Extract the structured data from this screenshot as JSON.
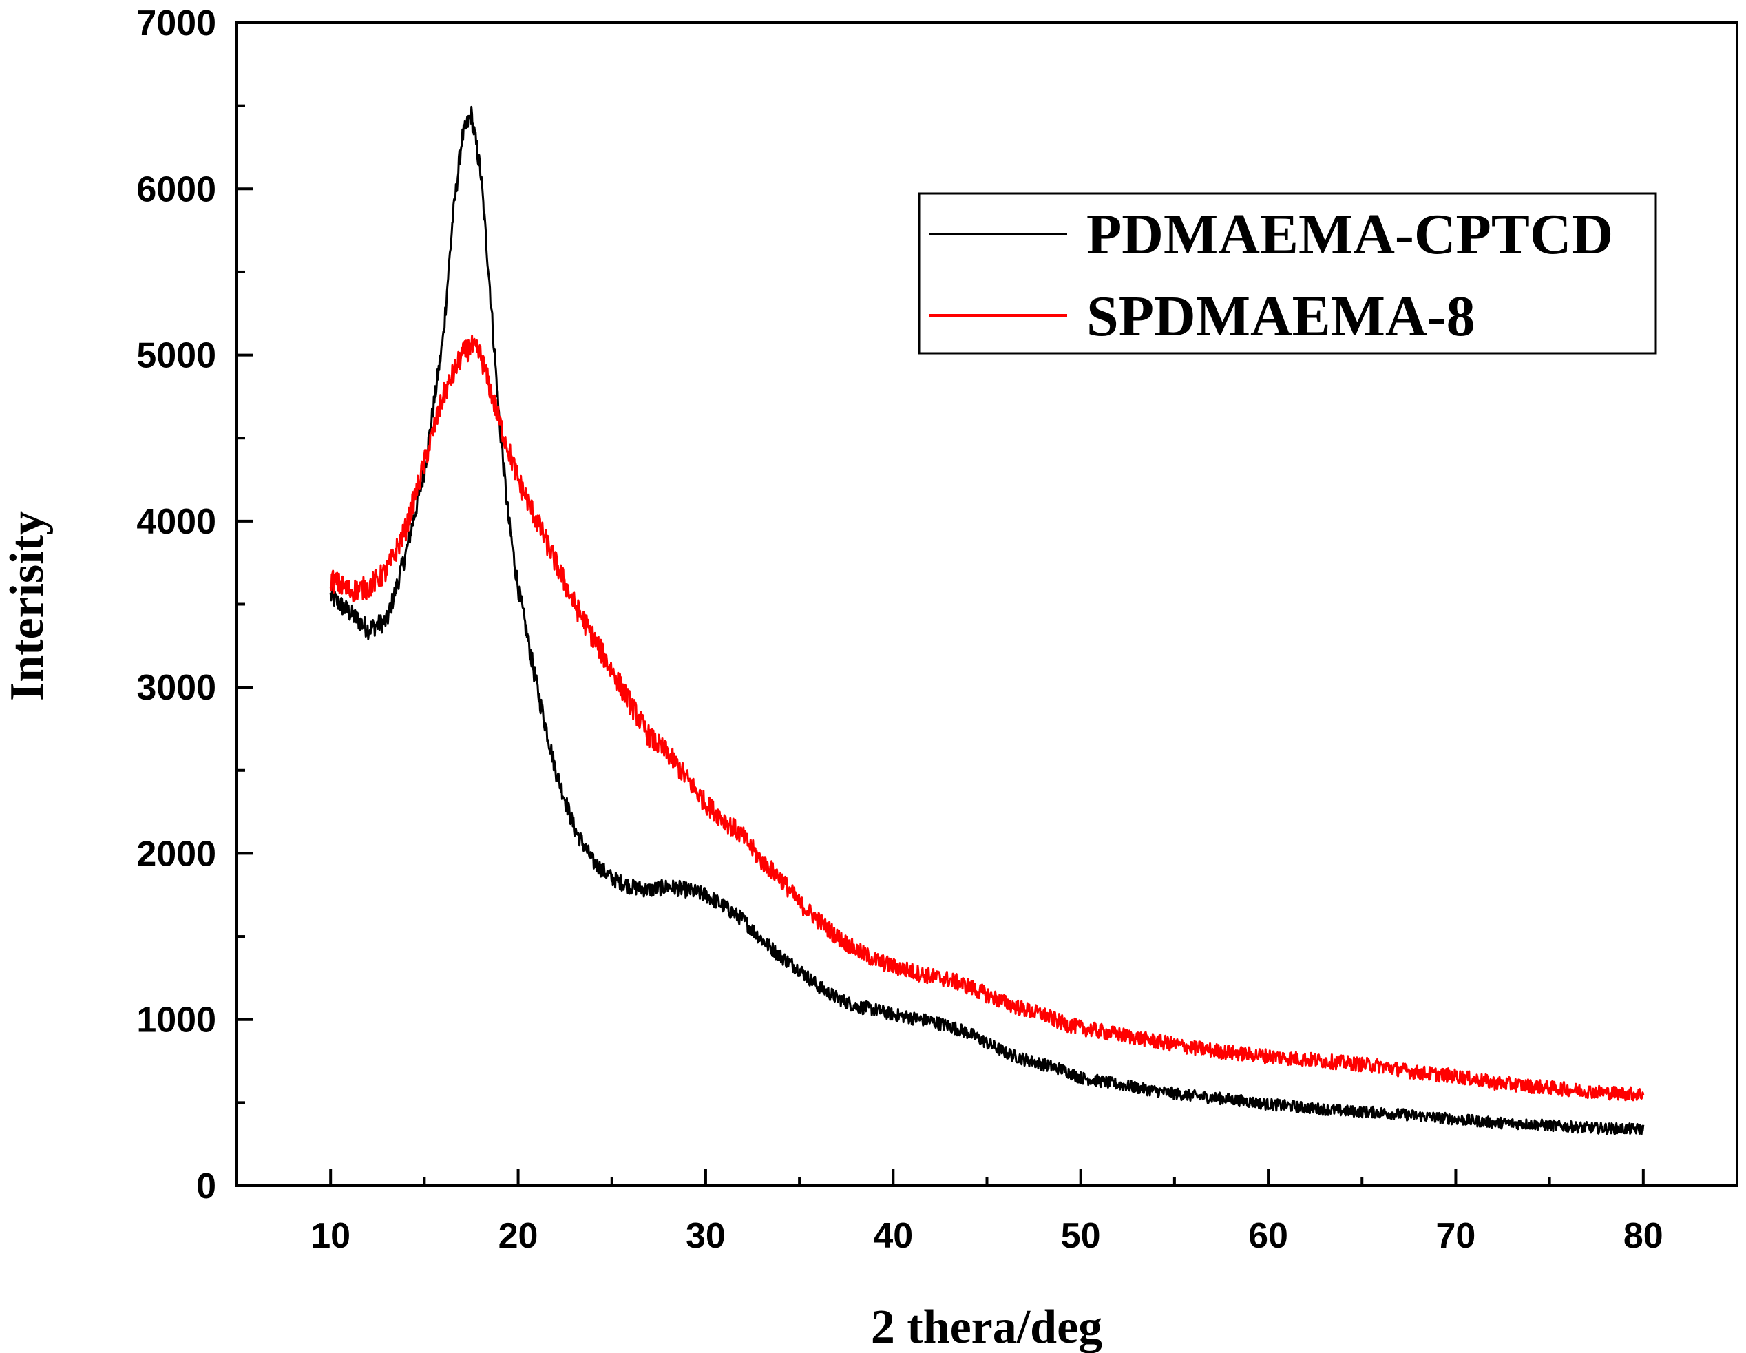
{
  "chart_data": {
    "type": "line",
    "title": "",
    "xlabel": "2 thera/deg",
    "ylabel": "Interisity",
    "xlim": [
      5,
      85
    ],
    "ylim": [
      0,
      7000
    ],
    "x_ticks": [
      10,
      20,
      30,
      40,
      50,
      60,
      70,
      80
    ],
    "y_ticks": [
      0,
      1000,
      2000,
      3000,
      4000,
      5000,
      6000,
      7000
    ],
    "grid": false,
    "legend_position": "top-right",
    "series": [
      {
        "name": "PDMAEMA-CPTCD",
        "color": "#000000",
        "noise": 60,
        "x": [
          10,
          11,
          12,
          13,
          14,
          15,
          16,
          16.5,
          17,
          17.5,
          18,
          18.5,
          19,
          19.5,
          20,
          21,
          22,
          23,
          24,
          25,
          26,
          27,
          28,
          29,
          30,
          31,
          32,
          33,
          34,
          35,
          36,
          37,
          38,
          39,
          40,
          41,
          42,
          43,
          44,
          45,
          46,
          47,
          48,
          49,
          50,
          52,
          54,
          56,
          58,
          60,
          62,
          64,
          66,
          68,
          70,
          72,
          74,
          76,
          78,
          80
        ],
        "y": [
          3550,
          3450,
          3350,
          3400,
          3800,
          4300,
          5100,
          5800,
          6300,
          6450,
          6100,
          5400,
          4600,
          4000,
          3600,
          3000,
          2500,
          2150,
          1950,
          1850,
          1800,
          1780,
          1800,
          1780,
          1750,
          1680,
          1600,
          1480,
          1380,
          1300,
          1200,
          1130,
          1080,
          1060,
          1030,
          1010,
          990,
          960,
          920,
          860,
          800,
          760,
          730,
          700,
          650,
          610,
          570,
          540,
          520,
          490,
          470,
          450,
          440,
          420,
          400,
          380,
          370,
          355,
          345,
          340
        ]
      },
      {
        "name": "SPDMAEMA-8",
        "color": "#ff0000",
        "noise": 70,
        "x": [
          10,
          11,
          12,
          13,
          14,
          15,
          16,
          17,
          17.5,
          18,
          19,
          20,
          21,
          22,
          23,
          24,
          25,
          26,
          27,
          28,
          29,
          30,
          31,
          32,
          33,
          34,
          35,
          36,
          37,
          38,
          39,
          40,
          41,
          42,
          43,
          44,
          45,
          46,
          47,
          48,
          49,
          50,
          52,
          54,
          56,
          58,
          60,
          62,
          64,
          66,
          68,
          70,
          72,
          74,
          76,
          78,
          80
        ],
        "y": [
          3650,
          3580,
          3600,
          3700,
          3950,
          4350,
          4750,
          5000,
          5050,
          5000,
          4600,
          4250,
          4000,
          3750,
          3500,
          3300,
          3100,
          2900,
          2700,
          2600,
          2450,
          2300,
          2200,
          2100,
          1950,
          1850,
          1700,
          1600,
          1500,
          1420,
          1360,
          1320,
          1290,
          1260,
          1240,
          1200,
          1150,
          1100,
          1060,
          1030,
          980,
          950,
          910,
          870,
          830,
          800,
          780,
          760,
          740,
          720,
          680,
          660,
          620,
          600,
          580,
          560,
          550
        ]
      }
    ]
  }
}
